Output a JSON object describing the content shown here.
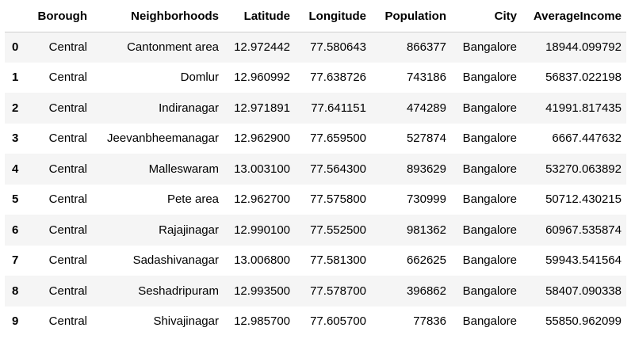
{
  "table": {
    "columns": [
      "",
      "Borough",
      "Neighborhoods",
      "Latitude",
      "Longitude",
      "Population",
      "City",
      "AverageIncome"
    ],
    "rows": [
      {
        "index": "0",
        "borough": "Central",
        "neighborhood": "Cantonment area",
        "latitude": "12.972442",
        "longitude": "77.580643",
        "population": "866377",
        "city": "Bangalore",
        "income": "18944.099792"
      },
      {
        "index": "1",
        "borough": "Central",
        "neighborhood": "Domlur",
        "latitude": "12.960992",
        "longitude": "77.638726",
        "population": "743186",
        "city": "Bangalore",
        "income": "56837.022198"
      },
      {
        "index": "2",
        "borough": "Central",
        "neighborhood": "Indiranagar",
        "latitude": "12.971891",
        "longitude": "77.641151",
        "population": "474289",
        "city": "Bangalore",
        "income": "41991.817435"
      },
      {
        "index": "3",
        "borough": "Central",
        "neighborhood": "Jeevanbheemanagar",
        "latitude": "12.962900",
        "longitude": "77.659500",
        "population": "527874",
        "city": "Bangalore",
        "income": "6667.447632"
      },
      {
        "index": "4",
        "borough": "Central",
        "neighborhood": "Malleswaram",
        "latitude": "13.003100",
        "longitude": "77.564300",
        "population": "893629",
        "city": "Bangalore",
        "income": "53270.063892"
      },
      {
        "index": "5",
        "borough": "Central",
        "neighborhood": "Pete area",
        "latitude": "12.962700",
        "longitude": "77.575800",
        "population": "730999",
        "city": "Bangalore",
        "income": "50712.430215"
      },
      {
        "index": "6",
        "borough": "Central",
        "neighborhood": "Rajajinagar",
        "latitude": "12.990100",
        "longitude": "77.552500",
        "population": "981362",
        "city": "Bangalore",
        "income": "60967.535874"
      },
      {
        "index": "7",
        "borough": "Central",
        "neighborhood": "Sadashivanagar",
        "latitude": "13.006800",
        "longitude": "77.581300",
        "population": "662625",
        "city": "Bangalore",
        "income": "59943.541564"
      },
      {
        "index": "8",
        "borough": "Central",
        "neighborhood": "Seshadripuram",
        "latitude": "12.993500",
        "longitude": "77.578700",
        "population": "396862",
        "city": "Bangalore",
        "income": "58407.090338"
      },
      {
        "index": "9",
        "borough": "Central",
        "neighborhood": "Shivajinagar",
        "latitude": "12.985700",
        "longitude": "77.605700",
        "population": "77836",
        "city": "Bangalore",
        "income": "55850.962099"
      }
    ]
  },
  "colors": {
    "stripe": "#f5f5f5",
    "header_rule": "#cfcfcf",
    "text": "#000000"
  }
}
